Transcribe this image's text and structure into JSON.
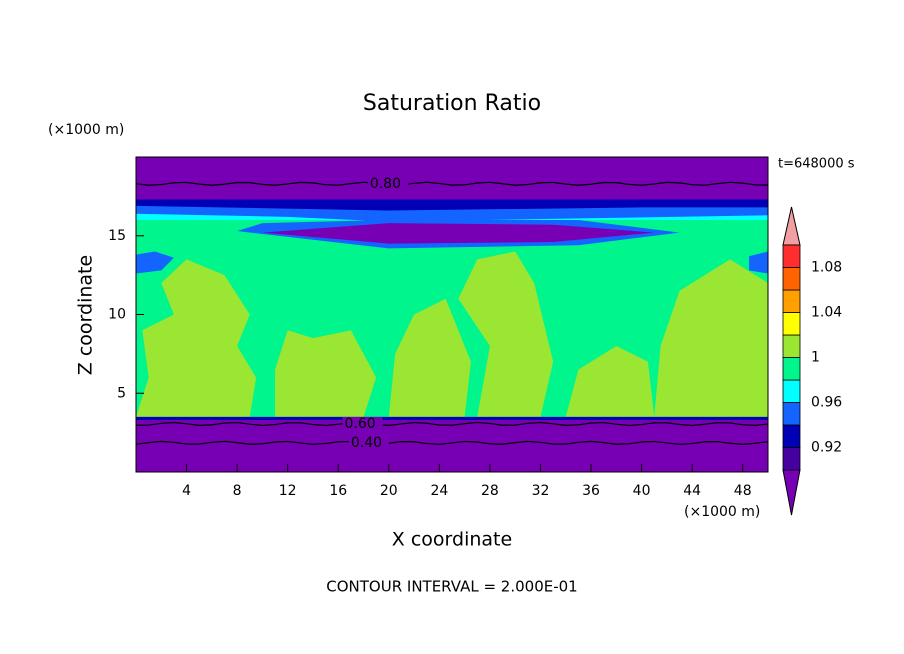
{
  "chart_data": {
    "type": "contour",
    "title": "Saturation Ratio",
    "x_label": "X coordinate",
    "y_label": "Z coordinate",
    "x_unit": "(×1000 m)",
    "y_unit": "(×1000 m)",
    "time_label": "t=648000 s",
    "footer": "CONTOUR INTERVAL = 2.000E-01",
    "xlim": [
      0,
      50
    ],
    "ylim": [
      0,
      20
    ],
    "xticks": [
      4,
      8,
      12,
      16,
      20,
      24,
      28,
      32,
      36,
      40,
      44,
      48
    ],
    "yticks": [
      5,
      10,
      15
    ],
    "contour_lines": [
      {
        "value": 0.8,
        "label": "0.80"
      },
      {
        "value": 0.6,
        "label": "0.60"
      },
      {
        "value": 0.4,
        "label": "0.40"
      }
    ],
    "colorbar": {
      "levels": [
        0.9,
        0.92,
        0.94,
        0.96,
        0.98,
        1,
        1.02,
        1.04,
        1.06,
        1.08,
        1.1
      ],
      "colors": [
        "#7800b4",
        "#4600a0",
        "#0000b4",
        "#1464ff",
        "#00ffff",
        "#00f58c",
        "#9be632",
        "#ffff00",
        "#ffa000",
        "#ff6400",
        "#ff2d2d",
        "#f0a0a0"
      ],
      "ticks": [
        0.92,
        0.96,
        1,
        1.04,
        1.08
      ]
    }
  }
}
